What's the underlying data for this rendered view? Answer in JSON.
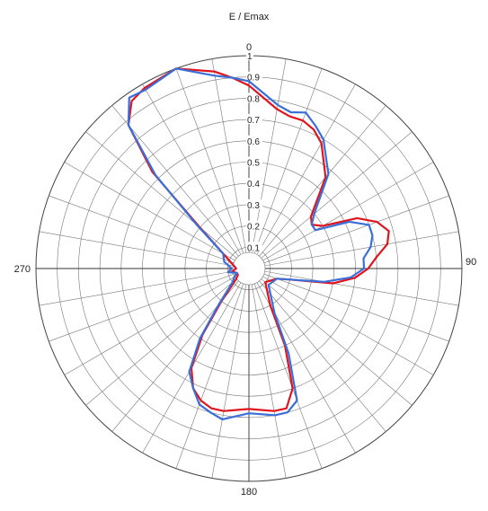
{
  "chart_data": {
    "type": "polar-line",
    "title": "E / Emax",
    "angle_labels": [
      {
        "deg": 0,
        "text": "0"
      },
      {
        "deg": 90,
        "text": "90"
      },
      {
        "deg": 180,
        "text": "180"
      },
      {
        "deg": 270,
        "text": "270"
      }
    ],
    "radial_ticks": [
      {
        "value": 0.1,
        "text": "0.1"
      },
      {
        "value": 0.2,
        "text": "0.2"
      },
      {
        "value": 0.3,
        "text": "0.3"
      },
      {
        "value": 0.4,
        "text": "0.4"
      },
      {
        "value": 0.5,
        "text": "0.5"
      },
      {
        "value": 0.6,
        "text": "0.6"
      },
      {
        "value": 0.7,
        "text": "0.7"
      },
      {
        "value": 0.8,
        "text": "0.8"
      },
      {
        "value": 0.9,
        "text": "0.9"
      },
      {
        "value": 1.0,
        "text": "1"
      }
    ],
    "r_range": [
      0,
      1
    ],
    "angular_grid_step_deg": 10,
    "grid": true,
    "series": [
      {
        "color": "#e0141e",
        "points": [
          [
            0,
            0.86
          ],
          [
            10,
            0.76
          ],
          [
            15,
            0.74
          ],
          [
            20,
            0.74
          ],
          [
            25,
            0.72
          ],
          [
            30,
            0.68
          ],
          [
            40,
            0.56
          ],
          [
            50,
            0.38
          ],
          [
            55,
            0.36
          ],
          [
            60,
            0.4
          ],
          [
            65,
            0.56
          ],
          [
            70,
            0.64
          ],
          [
            75,
            0.68
          ],
          [
            80,
            0.66
          ],
          [
            85,
            0.6
          ],
          [
            90,
            0.56
          ],
          [
            95,
            0.5
          ],
          [
            100,
            0.4
          ],
          [
            105,
            0.2
          ],
          [
            110,
            0.14
          ],
          [
            130,
            0.1
          ],
          [
            150,
            0.2
          ],
          [
            155,
            0.4
          ],
          [
            160,
            0.6
          ],
          [
            165,
            0.68
          ],
          [
            170,
            0.68
          ],
          [
            180,
            0.66
          ],
          [
            190,
            0.68
          ],
          [
            195,
            0.68
          ],
          [
            200,
            0.66
          ],
          [
            205,
            0.62
          ],
          [
            210,
            0.54
          ],
          [
            215,
            0.38
          ],
          [
            220,
            0.2
          ],
          [
            230,
            0.08
          ],
          [
            240,
            0.06
          ],
          [
            250,
            0.06
          ],
          [
            260,
            0.08
          ],
          [
            270,
            0.06
          ],
          [
            285,
            0.08
          ],
          [
            300,
            0.14
          ],
          [
            310,
            0.3
          ],
          [
            315,
            0.64
          ],
          [
            320,
            0.88
          ],
          [
            325,
            0.96
          ],
          [
            330,
            0.98
          ],
          [
            340,
            1.0
          ],
          [
            350,
            0.94
          ],
          [
            355,
            0.9
          ],
          [
            360,
            0.86
          ]
        ]
      },
      {
        "color": "#3a6fd8",
        "points": [
          [
            0,
            0.88
          ],
          [
            10,
            0.78
          ],
          [
            15,
            0.76
          ],
          [
            20,
            0.78
          ],
          [
            25,
            0.74
          ],
          [
            30,
            0.7
          ],
          [
            40,
            0.58
          ],
          [
            50,
            0.4
          ],
          [
            55,
            0.36
          ],
          [
            60,
            0.36
          ],
          [
            65,
            0.52
          ],
          [
            70,
            0.6
          ],
          [
            75,
            0.6
          ],
          [
            80,
            0.58
          ],
          [
            85,
            0.54
          ],
          [
            90,
            0.54
          ],
          [
            95,
            0.48
          ],
          [
            100,
            0.36
          ],
          [
            105,
            0.2
          ],
          [
            110,
            0.14
          ],
          [
            130,
            0.12
          ],
          [
            150,
            0.24
          ],
          [
            155,
            0.44
          ],
          [
            160,
            0.66
          ],
          [
            165,
            0.7
          ],
          [
            170,
            0.7
          ],
          [
            180,
            0.68
          ],
          [
            190,
            0.72
          ],
          [
            195,
            0.7
          ],
          [
            200,
            0.68
          ],
          [
            205,
            0.62
          ],
          [
            210,
            0.56
          ],
          [
            215,
            0.4
          ],
          [
            220,
            0.22
          ],
          [
            230,
            0.1
          ],
          [
            240,
            0.08
          ],
          [
            250,
            0.06
          ],
          [
            260,
            0.1
          ],
          [
            270,
            0.08
          ],
          [
            285,
            0.12
          ],
          [
            300,
            0.14
          ],
          [
            310,
            0.32
          ],
          [
            315,
            0.62
          ],
          [
            320,
            0.88
          ],
          [
            325,
            0.98
          ],
          [
            330,
            0.97
          ],
          [
            340,
            1.0
          ],
          [
            350,
            0.92
          ],
          [
            355,
            0.9
          ],
          [
            360,
            0.88
          ]
        ]
      }
    ]
  }
}
